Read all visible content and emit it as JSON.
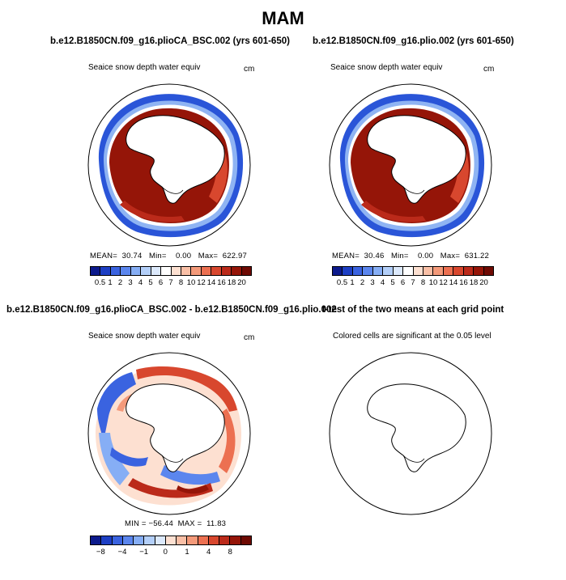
{
  "title": "MAM",
  "panels": {
    "top_left": {
      "case": "b.e12.B1850CN.f09_g16.plioCA_BSC.002 (yrs 601-650)",
      "variable": "Seaice snow depth water equiv",
      "units": "cm",
      "stats": "MEAN=  30.74   Min=    0.00   Max=  622.97"
    },
    "top_right": {
      "case": "b.e12.B1850CN.f09_g16.plio.002 (yrs 601-650)",
      "variable": "Seaice snow depth water equiv",
      "units": "cm",
      "stats": "MEAN=  30.46   Min=    0.00   Max=  631.22"
    },
    "bottom_left": {
      "case": "b.e12.B1850CN.f09_g16.plioCA_BSC.002 - b.e12.B1850CN.f09_g16.plio.002",
      "variable": "Seaice snow depth water equiv",
      "units": "cm",
      "stats": "MIN = −56.44  MAX =  11.83"
    },
    "bottom_right": {
      "case": "t-test of the two means at each grid point",
      "note": "Colored cells are significant at the 0.05 level"
    }
  },
  "colorbar_abs": {
    "labels": [
      "0.5",
      "1",
      "2",
      "3",
      "4",
      "5",
      "6",
      "7",
      "8",
      "10",
      "12",
      "14",
      "16",
      "18",
      "20"
    ],
    "colors": [
      "#0c1a8c",
      "#1d3fc4",
      "#3a63e0",
      "#5b86ee",
      "#86aef5",
      "#b3cff9",
      "#dce9fc",
      "#ffffff",
      "#fde0d1",
      "#f9bfa6",
      "#f49a7a",
      "#ec7051",
      "#d8472e",
      "#bb2a1a",
      "#951508",
      "#6e0a03"
    ]
  },
  "colorbar_diff": {
    "labels": [
      "−8",
      "−4",
      "−1",
      "0",
      "1",
      "4",
      "8"
    ],
    "colors": [
      "#0c1a8c",
      "#1d3fc4",
      "#3a63e0",
      "#5b86ee",
      "#86aef5",
      "#b3cff9",
      "#dce9fc",
      "#fde0d1",
      "#f9bfa6",
      "#f49a7a",
      "#ec7051",
      "#d8472e",
      "#bb2a1a",
      "#951508",
      "#6e0a03"
    ]
  }
}
